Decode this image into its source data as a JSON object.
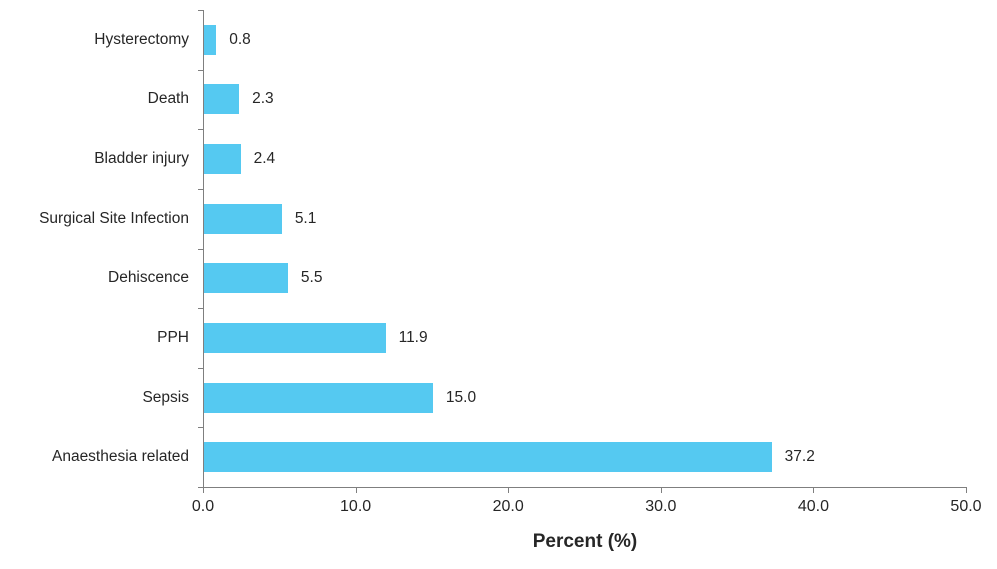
{
  "page": {
    "background": "#ffffff"
  },
  "chart_data": {
    "type": "bar",
    "orientation": "horizontal",
    "title": "",
    "xlabel": "Percent (%)",
    "ylabel": "",
    "categories": [
      "Hysterectomy",
      "Death",
      "Bladder injury",
      "Surgical Site Infection",
      "Dehiscence",
      "PPH",
      "Sepsis",
      "Anaesthesia related"
    ],
    "values": [
      0.8,
      2.3,
      2.4,
      5.1,
      5.5,
      11.9,
      15.0,
      37.2
    ],
    "value_labels": [
      "0.8",
      "2.3",
      "2.4",
      "5.1",
      "5.5",
      "11.9",
      "15.0",
      "37.2"
    ],
    "xlim": [
      0,
      50
    ],
    "x_tick_values": [
      0,
      10,
      20,
      30,
      40,
      50
    ],
    "x_tick_labels": [
      "0.0",
      "10.0",
      "20.0",
      "30.0",
      "40.0",
      "50.0"
    ],
    "grid": false,
    "legend": false,
    "colors": {
      "bar": "#55c9f1",
      "axis": "#7f7f7f",
      "text": "#262626"
    }
  }
}
